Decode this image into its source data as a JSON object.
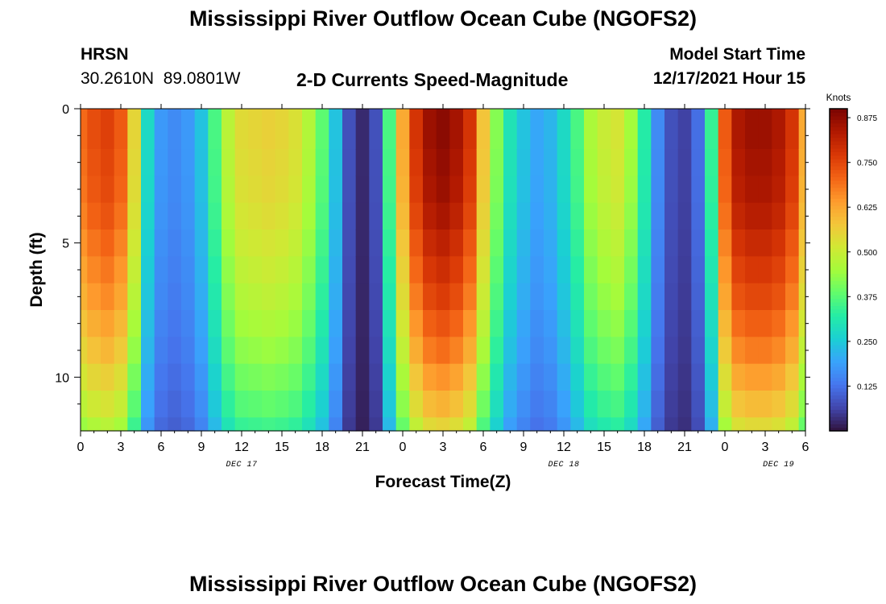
{
  "header": {
    "title": "Mississippi River Outflow Ocean Cube (NGOFS2)",
    "station_id": "HRSN",
    "station_coords": "30.2610N  89.0801W",
    "plot_name": "2-D Currents Speed-Magnitude",
    "model_start_label": "Model Start Time",
    "model_start_value": "12/17/2021 Hour 15"
  },
  "footer": {
    "title": "Mississippi River Outflow Ocean Cube (NGOFS2)"
  },
  "chart_data": {
    "type": "heatmap",
    "title": "2-D Currents Speed-Magnitude",
    "xlabel": "Forecast Time(Z)",
    "ylabel": "Depth (ft)",
    "x_start_hour": 0,
    "x_end_hour": 54,
    "x_step_hours": 1,
    "xlim": [
      0,
      54
    ],
    "ylim": [
      0,
      12
    ],
    "y_levels_ft": [
      0,
      1,
      2,
      3,
      4,
      5,
      6,
      7,
      8,
      9,
      10,
      11,
      12
    ],
    "x_ticks": [
      {
        "hour": 0,
        "label": "0"
      },
      {
        "hour": 3,
        "label": "3"
      },
      {
        "hour": 6,
        "label": "6"
      },
      {
        "hour": 9,
        "label": "9"
      },
      {
        "hour": 12,
        "label": "12"
      },
      {
        "hour": 15,
        "label": "15"
      },
      {
        "hour": 18,
        "label": "18"
      },
      {
        "hour": 21,
        "label": "21"
      },
      {
        "hour": 24,
        "label": "0"
      },
      {
        "hour": 27,
        "label": "3"
      },
      {
        "hour": 30,
        "label": "6"
      },
      {
        "hour": 33,
        "label": "9"
      },
      {
        "hour": 36,
        "label": "12"
      },
      {
        "hour": 39,
        "label": "15"
      },
      {
        "hour": 42,
        "label": "18"
      },
      {
        "hour": 45,
        "label": "21"
      },
      {
        "hour": 48,
        "label": "0"
      },
      {
        "hour": 51,
        "label": "3"
      },
      {
        "hour": 54,
        "label": "6"
      }
    ],
    "y_ticks": [
      {
        "depth": 0,
        "label": "0"
      },
      {
        "depth": 5,
        "label": "5"
      },
      {
        "depth": 10,
        "label": "10"
      }
    ],
    "date_labels": [
      {
        "hour": 12,
        "label": "DEC 17"
      },
      {
        "hour": 36,
        "label": "DEC 18"
      },
      {
        "hour": 52,
        "label": "DEC 19"
      }
    ],
    "surface_speed_knots": [
      0.7,
      0.74,
      0.76,
      0.72,
      0.55,
      0.28,
      0.18,
      0.16,
      0.18,
      0.24,
      0.36,
      0.48,
      0.54,
      0.55,
      0.56,
      0.55,
      0.53,
      0.47,
      0.38,
      0.24,
      0.08,
      0.03,
      0.08,
      0.36,
      0.62,
      0.78,
      0.86,
      0.88,
      0.85,
      0.78,
      0.58,
      0.42,
      0.3,
      0.24,
      0.2,
      0.22,
      0.28,
      0.36,
      0.46,
      0.5,
      0.52,
      0.45,
      0.32,
      0.16,
      0.08,
      0.06,
      0.12,
      0.34,
      0.72,
      0.84,
      0.86,
      0.86,
      0.84,
      0.78,
      0.62
    ],
    "depth_factor": [
      1.0,
      1.0,
      0.99,
      0.98,
      0.96,
      0.93,
      0.9,
      0.87,
      0.83,
      0.79,
      0.74,
      0.69,
      0.63
    ],
    "colorbar": {
      "label": "Knots",
      "min": 0,
      "max": 0.9,
      "ticks": [
        "0.875",
        "0.750",
        "0.625",
        "0.500",
        "0.375",
        "0.250",
        "0.125"
      ],
      "colors": [
        "#30123b",
        "#4145ab",
        "#4675ed",
        "#39a2fc",
        "#1bcfd4",
        "#24eca6",
        "#61fc6c",
        "#a4fc3b",
        "#d1e834",
        "#f3c63a",
        "#fe9b2d",
        "#f36315",
        "#d93806",
        "#b11901",
        "#7a0402"
      ]
    }
  }
}
